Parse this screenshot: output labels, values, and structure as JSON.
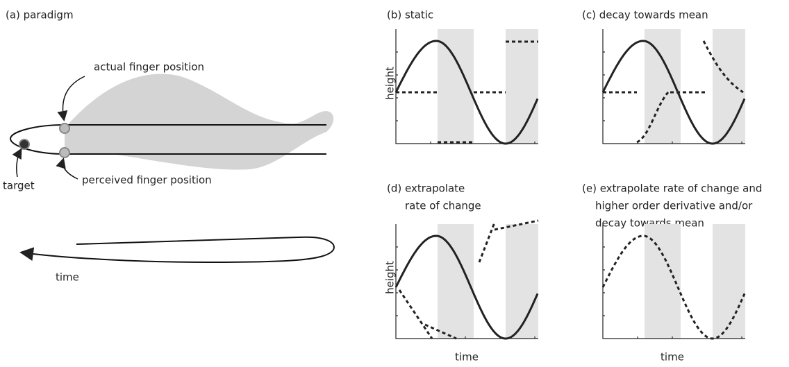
{
  "panels": [
    {
      "title": "(a) paradigm",
      "annotations": [
        "actual finger position",
        "target",
        "perceived finger position",
        "time"
      ]
    },
    {
      "title": "(b) static",
      "y_label": "height"
    },
    {
      "title": "(c) decay towards mean"
    },
    {
      "title_lines": [
        "(d) extrapolate",
        "rate of change"
      ],
      "y_label": "height",
      "x_label": "time"
    },
    {
      "title_lines": [
        "(e) extrapolate rate of change and",
        "higher order derivative and/or",
        "decay towards mean"
      ],
      "x_label": "time"
    }
  ]
}
